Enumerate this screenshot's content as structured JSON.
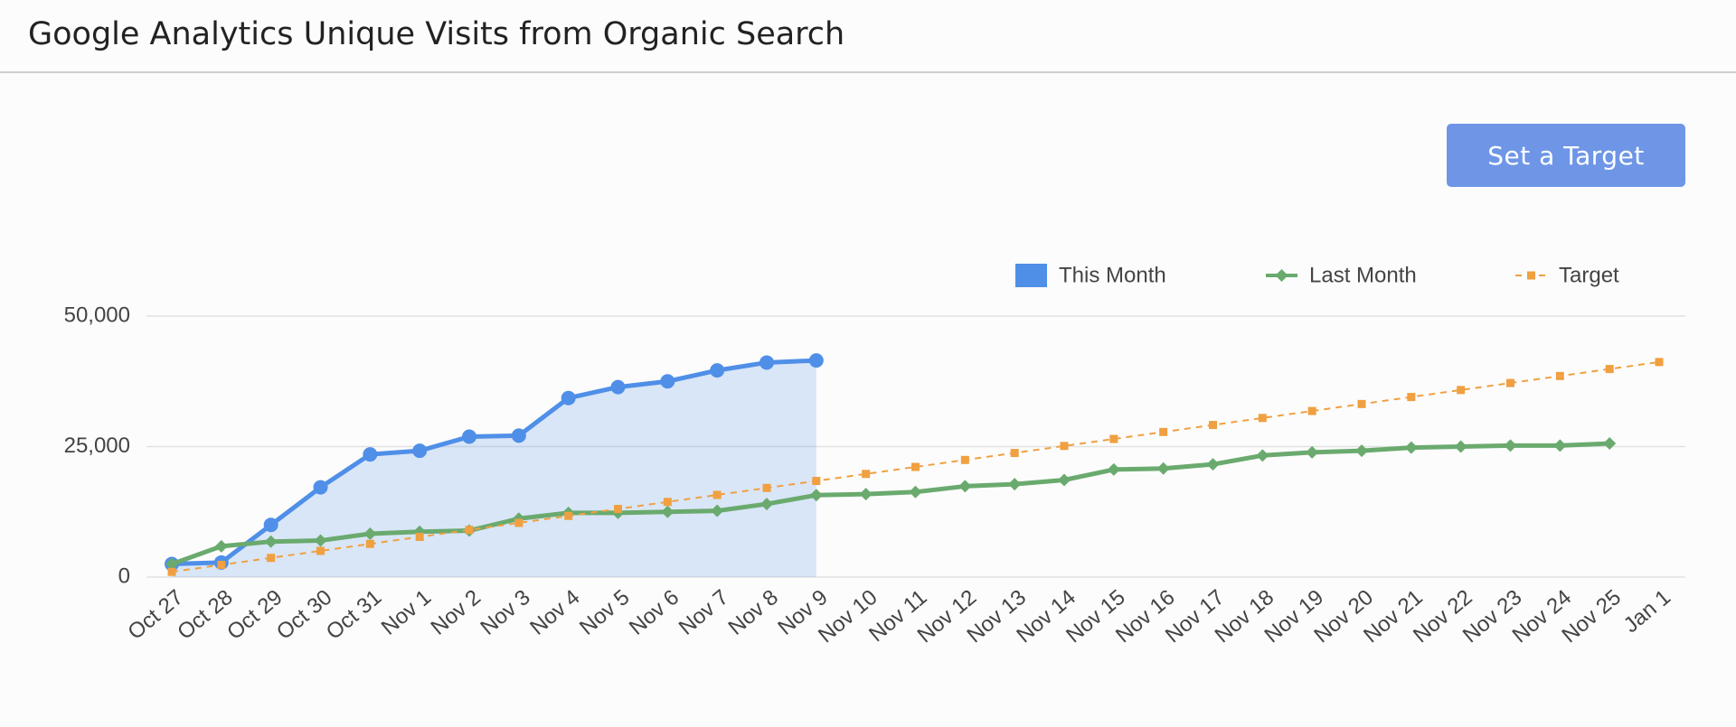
{
  "chart_data": {
    "type": "line",
    "title": "Google Analytics Unique Visits from Organic Search",
    "categories": [
      "Oct 27",
      "Oct 28",
      "Oct 29",
      "Oct 30",
      "Oct 31",
      "Nov 1",
      "Nov 2",
      "Nov 3",
      "Nov 4",
      "Nov 5",
      "Nov 6",
      "Nov 7",
      "Nov 8",
      "Nov 9",
      "Nov 10",
      "Nov 11",
      "Nov 12",
      "Nov 13",
      "Nov 14",
      "Nov 15",
      "Nov 16",
      "Nov 17",
      "Nov 18",
      "Nov 19",
      "Nov 20",
      "Nov 21",
      "Nov 22",
      "Nov 23",
      "Nov 24",
      "Nov 25",
      "Jan 1"
    ],
    "series": [
      {
        "name": "This Month",
        "color": "#4f8fe8",
        "area": true,
        "marker": "circle",
        "dashed": false,
        "values": [
          2500,
          2800,
          10000,
          17200,
          23500,
          24200,
          26900,
          27100,
          34300,
          36400,
          37500,
          39600,
          41100,
          41500,
          null,
          null,
          null,
          null,
          null,
          null,
          null,
          null,
          null,
          null,
          null,
          null,
          null,
          null,
          null,
          null,
          null
        ]
      },
      {
        "name": "Last Month",
        "color": "#6aaa6e",
        "area": false,
        "marker": "diamond",
        "dashed": false,
        "values": [
          2500,
          5900,
          6800,
          7000,
          8300,
          8700,
          8900,
          11200,
          12300,
          12300,
          12500,
          12700,
          14000,
          15700,
          15900,
          16300,
          17400,
          17800,
          18600,
          20600,
          20800,
          21600,
          23300,
          23900,
          24200,
          24800,
          25000,
          25200,
          25200,
          25600,
          null
        ]
      },
      {
        "name": "Target",
        "color": "#f0a040",
        "area": false,
        "marker": "square",
        "dashed": true,
        "values": [
          1000,
          2340,
          3680,
          5020,
          6360,
          7700,
          9040,
          10380,
          11720,
          13060,
          14400,
          15740,
          17080,
          18420,
          19760,
          21100,
          22440,
          23780,
          25120,
          26460,
          27800,
          29140,
          30480,
          31820,
          33160,
          34500,
          35840,
          37180,
          38520,
          39860,
          41200
        ]
      }
    ],
    "ylim": [
      0,
      50000
    ],
    "yticks": [
      0,
      {
        "value": 25000,
        "label": "25,000"
      },
      {
        "value": 50000,
        "label": "50,000"
      }
    ],
    "grid": true,
    "legend": "top-right"
  },
  "button": {
    "label": "Set a Target"
  }
}
